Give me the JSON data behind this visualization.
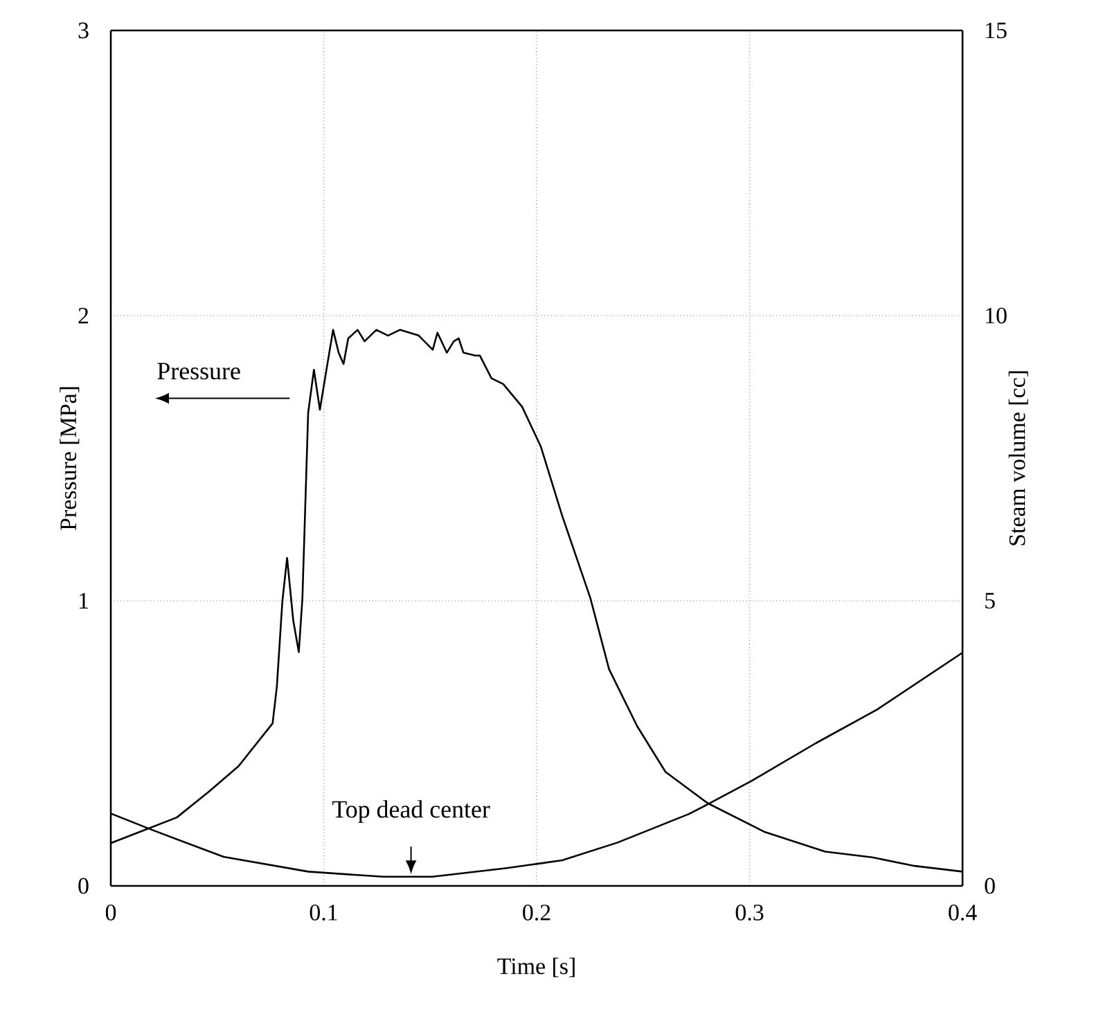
{
  "chart_data": {
    "type": "line",
    "xlabel": "Time [s]",
    "ylabel": "Pressure    [MPa]",
    "y2label": "Steam volume [cc]",
    "xlim": [
      0,
      0.4
    ],
    "xticks": [
      0,
      0.1,
      0.2,
      0.3,
      0.4
    ],
    "ylim": [
      0,
      3
    ],
    "yticks": [
      0,
      1,
      2,
      3
    ],
    "y2lim": [
      0,
      15
    ],
    "y2ticks": [
      0,
      5,
      10,
      15
    ],
    "grid": true,
    "marker": "none",
    "line_style": "solid",
    "annotations": [
      "Pressure",
      {
        "text": "Top dead center",
        "x": 0.141,
        "y": 0.031
      }
    ],
    "series": [
      {
        "color": "#000000",
        "axis": "y",
        "x": [
          0.0,
          0.031,
          0.046,
          0.06,
          0.076,
          0.078,
          0.0806,
          0.0828,
          0.0857,
          0.0883,
          0.09,
          0.0927,
          0.0954,
          0.0982,
          0.1015,
          0.1044,
          0.107,
          0.1093,
          0.1115,
          0.1159,
          0.1192,
          0.1247,
          0.1302,
          0.1358,
          0.1446,
          0.1512,
          0.1534,
          0.1578,
          0.1611,
          0.1634,
          0.1656,
          0.1711,
          0.1733,
          0.1788,
          0.1843,
          0.1932,
          0.202,
          0.2119,
          0.2252,
          0.234,
          0.2472,
          0.2605,
          0.2803,
          0.3068,
          0.3355,
          0.3576,
          0.3775,
          0.4
        ],
        "values": [
          0.15,
          0.24,
          0.33,
          0.42,
          0.57,
          0.7,
          1.0,
          1.15,
          0.93,
          0.82,
          1.01,
          1.66,
          1.81,
          1.67,
          1.82,
          1.95,
          1.87,
          1.83,
          1.92,
          1.95,
          1.91,
          1.95,
          1.93,
          1.95,
          1.93,
          1.88,
          1.94,
          1.87,
          1.91,
          1.92,
          1.87,
          1.86,
          1.86,
          1.78,
          1.76,
          1.68,
          1.54,
          1.3,
          1.01,
          0.76,
          0.56,
          0.4,
          0.29,
          0.19,
          0.12,
          0.1,
          0.07,
          0.05
        ]
      },
      {
        "color": "#000000",
        "axis": "y2",
        "x": [
          0.0,
          0.0188,
          0.053,
          0.0927,
          0.128,
          0.151,
          0.1854,
          0.2009,
          0.212,
          0.238,
          0.2715,
          0.2803,
          0.3009,
          0.331,
          0.3598,
          0.4
        ],
        "values": [
          1.27,
          0.99,
          0.51,
          0.25,
          0.16,
          0.16,
          0.31,
          0.39,
          0.45,
          0.76,
          1.26,
          1.43,
          1.84,
          2.5,
          3.09,
          4.09
        ]
      }
    ]
  }
}
